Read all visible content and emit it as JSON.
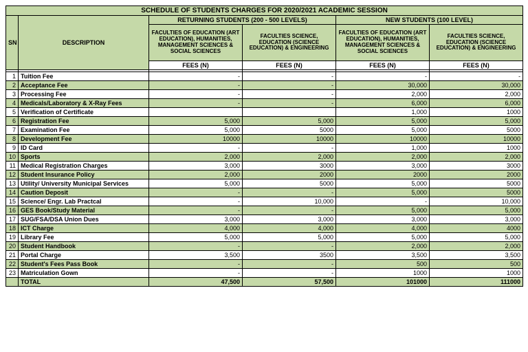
{
  "title": "SCHEDULE OF STUDENTS CHARGES FOR 2020/2021 ACADEMIC SESSION",
  "group_headers": {
    "returning": "RETURNING STUDENTS (200 - 500 LEVELS)",
    "new": "NEW STUDENTS (100 LEVEL)"
  },
  "sn_header": "SN",
  "desc_header": "DESCRIPTION",
  "faculty_headers": {
    "arts": "FACULTIES OF EDUCATION (ART EDUCATION), HUMANITIES, MANAGEMENT SCIENCES & SOCIAL SCIENCES",
    "sci": "FACULTIES SCIENCE, EDUCATION (SCIENCE EDUCATION) & ENGINEERING"
  },
  "fees_label": "FEES (N)",
  "rows": [
    {
      "sn": "1",
      "desc": "Tuition Fee",
      "a": "-",
      "b": "-",
      "c": "-",
      "d": "-"
    },
    {
      "sn": "2",
      "desc": "Acceptance Fee",
      "a": "-",
      "b": "-",
      "c": "30,000",
      "d": "30,000"
    },
    {
      "sn": "3",
      "desc": "Processing Fee",
      "a": "-",
      "b": "-",
      "c": "2,000",
      "d": "2,000"
    },
    {
      "sn": "4",
      "desc": "Medicals/Laboratory & X-Ray Fees",
      "a": "-",
      "b": "-",
      "c": "6,000",
      "d": "6,000"
    },
    {
      "sn": "5",
      "desc": "Verification of Certificate",
      "a": "",
      "b": "",
      "c": "1,000",
      "d": "1000"
    },
    {
      "sn": "6",
      "desc": "Registration Fee",
      "a": "5,000",
      "b": "5,000",
      "c": "5,000",
      "d": "5,000"
    },
    {
      "sn": "7",
      "desc": "Examination Fee",
      "a": "5,000",
      "b": "5000",
      "c": "5,000",
      "d": "5000"
    },
    {
      "sn": "8",
      "desc": "Development Fee",
      "a": "10000",
      "b": "10000",
      "c": "10000",
      "d": "10000"
    },
    {
      "sn": "9",
      "desc": "ID Card",
      "a": "-",
      "b": "-",
      "c": "1,000",
      "d": "1000"
    },
    {
      "sn": "10",
      "desc": "Sports",
      "a": "2,000",
      "b": "2,000",
      "c": "2,000",
      "d": "2,000"
    },
    {
      "sn": "11",
      "desc": "Medical Registration Charges",
      "a": "3,000",
      "b": "3000",
      "c": "3,000",
      "d": "3000"
    },
    {
      "sn": "12",
      "desc": "Student Insurance Policy",
      "a": "2,000",
      "b": "2000",
      "c": "2000",
      "d": "2000"
    },
    {
      "sn": "13",
      "desc": "Utility/ University Municipal Services",
      "a": "5,000",
      "b": "5000",
      "c": "5,000",
      "d": "5000"
    },
    {
      "sn": "14",
      "desc": "Caution Deposit",
      "a": "-",
      "b": "-",
      "c": "5,000",
      "d": "5000"
    },
    {
      "sn": "15",
      "desc": "Science/ Engr. Lab Practcal",
      "a": "-",
      "b": "10,000",
      "c": "-",
      "d": "10,000"
    },
    {
      "sn": "16",
      "desc": "GES Book/Study Material",
      "a": "-",
      "b": "-",
      "c": "5,000",
      "d": "5,000"
    },
    {
      "sn": "17",
      "desc": "SUG/FSA/DSA Union Dues",
      "a": "3,000",
      "b": "3,000",
      "c": "3,000",
      "d": "3,000"
    },
    {
      "sn": "18",
      "desc": "ICT Charge",
      "a": "4,000",
      "b": "4,000",
      "c": "4,000",
      "d": "4000"
    },
    {
      "sn": "19",
      "desc": "Library Fee",
      "a": "5,000",
      "b": "5,000",
      "c": "5,000",
      "d": "5,000"
    },
    {
      "sn": "20",
      "desc": "Student Handbook",
      "a": "-",
      "b": "-",
      "c": "2,000",
      "d": "2,000"
    },
    {
      "sn": "21",
      "desc": "Portal Charge",
      "a": "3,500",
      "b": "3500",
      "c": "3,500",
      "d": "3,500"
    },
    {
      "sn": "22",
      "desc": "Student's Fees Pass Book",
      "a": "-",
      "b": "-",
      "c": "500",
      "d": "500"
    },
    {
      "sn": "23",
      "desc": "Matriculation Gown",
      "a": "-",
      "b": "-",
      "c": "1000",
      "d": "1000"
    }
  ],
  "total": {
    "label": "TOTAL",
    "a": "47,500",
    "b": "57,500",
    "c": "101000",
    "d": "111000"
  }
}
